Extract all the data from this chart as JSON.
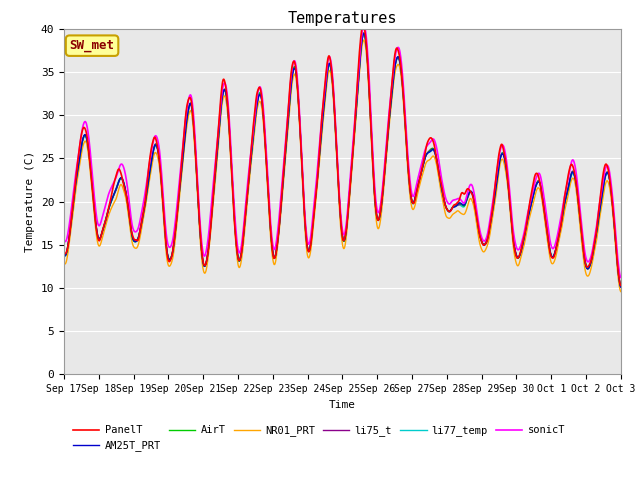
{
  "title": "Temperatures",
  "xlabel": "Time",
  "ylabel": "Temperature (C)",
  "ylim": [
    0,
    40
  ],
  "yticks": [
    0,
    5,
    10,
    15,
    20,
    25,
    30,
    35,
    40
  ],
  "annotation_text": "SW_met",
  "annotation_color": "#8B0000",
  "annotation_bg": "#FFFF99",
  "annotation_border": "#C8A000",
  "series_colors": {
    "PanelT": "#FF0000",
    "AM25T_PRT": "#0000CC",
    "AirT": "#00CC00",
    "NR01_PRT": "#FFA500",
    "li75_t": "#8B008B",
    "li77_temp": "#00CCCC",
    "sonicT": "#FF00FF"
  },
  "series_lw": {
    "PanelT": 1.2,
    "AM25T_PRT": 1.0,
    "AirT": 1.0,
    "NR01_PRT": 1.0,
    "li75_t": 1.0,
    "li77_temp": 1.0,
    "sonicT": 1.2
  },
  "bg_color": "#E8E8E8",
  "fig_bg": "#FFFFFF",
  "grid_color": "#FFFFFF",
  "n_days": 16,
  "start_day": 17,
  "points_per_day": 144,
  "day_peaks": [
    28,
    22,
    26,
    31,
    33,
    32,
    35,
    35,
    39,
    38,
    27,
    20,
    26,
    22,
    23,
    23
  ],
  "day_mins": [
    15,
    17,
    14,
    13,
    12,
    15,
    13,
    16,
    16,
    20,
    20,
    18,
    13,
    14,
    14,
    11
  ],
  "sonic_offsets": [
    4,
    5,
    3,
    4,
    4,
    3,
    3,
    3,
    3,
    3,
    4,
    2,
    3,
    3,
    3,
    3
  ]
}
